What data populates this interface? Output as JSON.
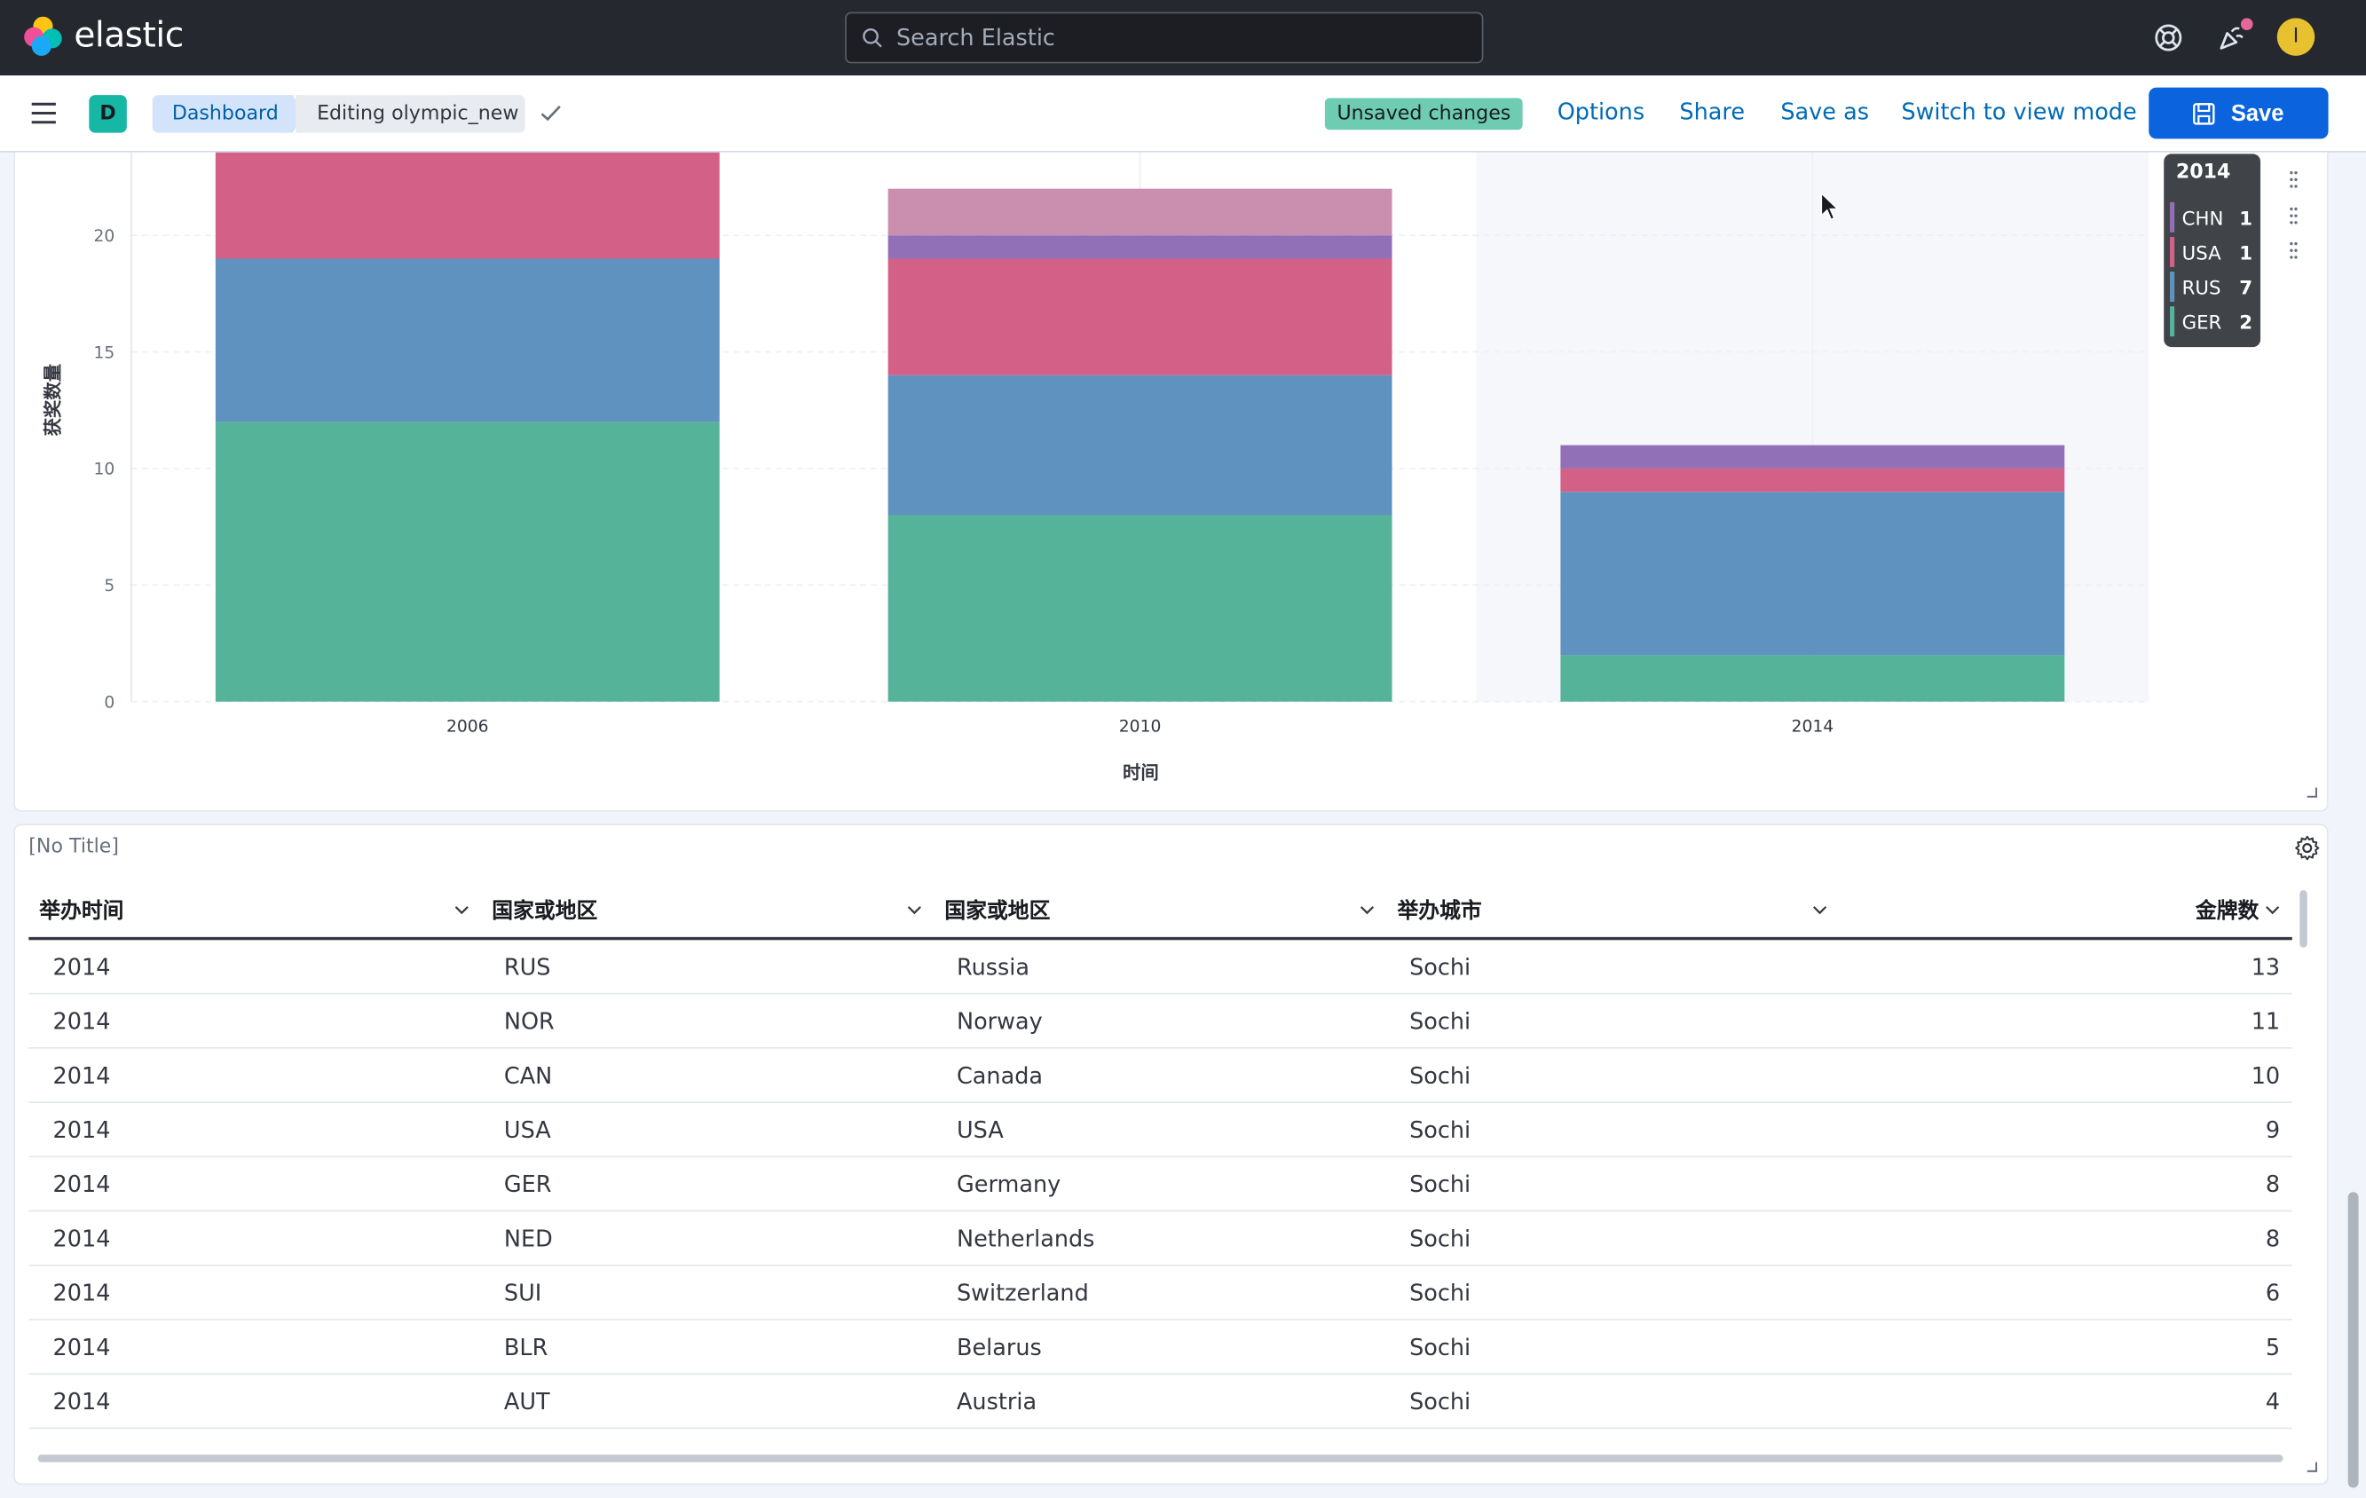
{
  "app": {
    "brand": "elastic"
  },
  "search": {
    "placeholder": "Search Elastic"
  },
  "user": {
    "avatar_initial": "I"
  },
  "space": {
    "initial": "D"
  },
  "breadcrumbs": [
    "Dashboard",
    "Editing olympic_new"
  ],
  "status_badge": "Unsaved changes",
  "toolbar": {
    "options": "Options",
    "share": "Share",
    "save_as": "Save as",
    "switch_view": "Switch to view mode",
    "save": "Save"
  },
  "colors": {
    "green": "#54b399",
    "blue": "#6092c0",
    "pink": "#d36086",
    "purple": "#9170b8",
    "lightpink": "#ca8eae",
    "accent": "#0b64dd"
  },
  "chart_data": {
    "type": "bar",
    "stacked": true,
    "xlabel": "时间",
    "ylabel": "获奖数量",
    "categories": [
      "2006",
      "2010",
      "2014"
    ],
    "yticks": [
      0,
      5,
      10,
      15,
      20
    ],
    "ylim": [
      0,
      23.5
    ],
    "grid": true,
    "series": [
      {
        "name": "GER",
        "color": "#54b399",
        "values": [
          12,
          8,
          2
        ]
      },
      {
        "name": "RUS",
        "color": "#6092c0",
        "values": [
          7,
          6,
          7
        ]
      },
      {
        "name": "USA",
        "color": "#d36086",
        "values": [
          5,
          5,
          1
        ]
      },
      {
        "name": "CHN",
        "color": "#9170b8",
        "values": [
          0,
          1,
          1
        ]
      },
      {
        "name": "",
        "color": "#ca8eae",
        "values": [
          0,
          2,
          0
        ]
      }
    ],
    "highlighted_category": "2014"
  },
  "tooltip": {
    "title": "2014",
    "rows": [
      {
        "name": "CHN",
        "value": "1",
        "color": "#9170b8"
      },
      {
        "name": "USA",
        "value": "1",
        "color": "#d36086"
      },
      {
        "name": "RUS",
        "value": "7",
        "color": "#6092c0"
      },
      {
        "name": "GER",
        "value": "2",
        "color": "#54b399"
      }
    ]
  },
  "table": {
    "title": "[No Title]",
    "columns": [
      "举办时间",
      "国家或地区",
      "国家或地区",
      "举办城市",
      "金牌数"
    ],
    "rows": [
      [
        "2014",
        "RUS",
        "Russia",
        "Sochi",
        "13"
      ],
      [
        "2014",
        "NOR",
        "Norway",
        "Sochi",
        "11"
      ],
      [
        "2014",
        "CAN",
        "Canada",
        "Sochi",
        "10"
      ],
      [
        "2014",
        "USA",
        "USA",
        "Sochi",
        "9"
      ],
      [
        "2014",
        "GER",
        "Germany",
        "Sochi",
        "8"
      ],
      [
        "2014",
        "NED",
        "Netherlands",
        "Sochi",
        "8"
      ],
      [
        "2014",
        "SUI",
        "Switzerland",
        "Sochi",
        "6"
      ],
      [
        "2014",
        "BLR",
        "Belarus",
        "Sochi",
        "5"
      ],
      [
        "2014",
        "AUT",
        "Austria",
        "Sochi",
        "4"
      ]
    ]
  }
}
